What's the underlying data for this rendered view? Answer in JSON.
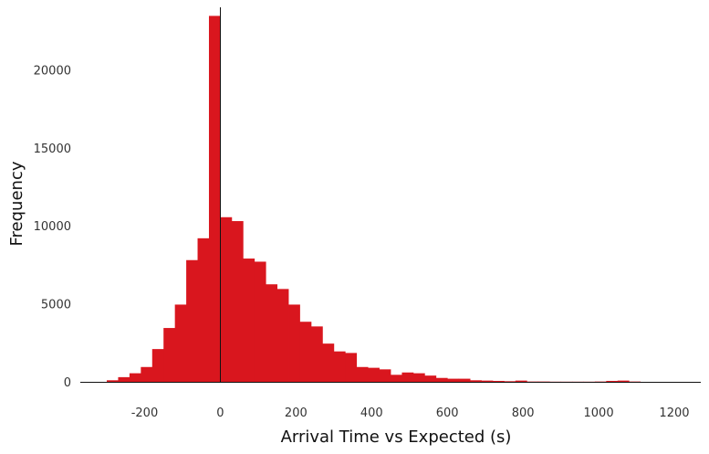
{
  "chart_data": {
    "type": "bar",
    "title": "",
    "xlabel": "Arrival Time vs Expected (s)",
    "ylabel": "Frequency",
    "bin_width": 30,
    "xlim": [
      -370,
      1270
    ],
    "ylim": [
      0,
      24000
    ],
    "x_ticks": [
      -200,
      0,
      200,
      400,
      600,
      800,
      1000,
      1200
    ],
    "x_tick_labels": [
      "-200",
      "0",
      "200",
      "400",
      "600",
      "800",
      "1000",
      "1200"
    ],
    "y_ticks": [
      0,
      5000,
      10000,
      15000,
      20000
    ],
    "y_tick_labels": [
      "0",
      "5000",
      "10000",
      "15000",
      "20000"
    ],
    "bar_color": "#d9161e",
    "grid": false,
    "bins": [
      {
        "x0": -300,
        "count": 100
      },
      {
        "x0": -270,
        "count": 300
      },
      {
        "x0": -240,
        "count": 550
      },
      {
        "x0": -210,
        "count": 950
      },
      {
        "x0": -180,
        "count": 2100
      },
      {
        "x0": -150,
        "count": 3450
      },
      {
        "x0": -120,
        "count": 4950
      },
      {
        "x0": -90,
        "count": 7800
      },
      {
        "x0": -60,
        "count": 9200
      },
      {
        "x0": -30,
        "count": 23450
      },
      {
        "x0": 0,
        "count": 10550
      },
      {
        "x0": 30,
        "count": 10300
      },
      {
        "x0": 60,
        "count": 7900
      },
      {
        "x0": 90,
        "count": 7700
      },
      {
        "x0": 120,
        "count": 6250
      },
      {
        "x0": 150,
        "count": 5950
      },
      {
        "x0": 180,
        "count": 4950
      },
      {
        "x0": 210,
        "count": 3850
      },
      {
        "x0": 240,
        "count": 3550
      },
      {
        "x0": 270,
        "count": 2450
      },
      {
        "x0": 300,
        "count": 1950
      },
      {
        "x0": 330,
        "count": 1850
      },
      {
        "x0": 360,
        "count": 950
      },
      {
        "x0": 390,
        "count": 900
      },
      {
        "x0": 420,
        "count": 800
      },
      {
        "x0": 450,
        "count": 450
      },
      {
        "x0": 480,
        "count": 600
      },
      {
        "x0": 510,
        "count": 550
      },
      {
        "x0": 540,
        "count": 400
      },
      {
        "x0": 570,
        "count": 250
      },
      {
        "x0": 600,
        "count": 200
      },
      {
        "x0": 630,
        "count": 200
      },
      {
        "x0": 660,
        "count": 100
      },
      {
        "x0": 690,
        "count": 80
      },
      {
        "x0": 720,
        "count": 60
      },
      {
        "x0": 750,
        "count": 40
      },
      {
        "x0": 780,
        "count": 80
      },
      {
        "x0": 810,
        "count": 20
      },
      {
        "x0": 840,
        "count": 20
      },
      {
        "x0": 870,
        "count": 10
      },
      {
        "x0": 900,
        "count": 10
      },
      {
        "x0": 930,
        "count": 10
      },
      {
        "x0": 960,
        "count": 10
      },
      {
        "x0": 990,
        "count": 20
      },
      {
        "x0": 1020,
        "count": 60
      },
      {
        "x0": 1050,
        "count": 80
      },
      {
        "x0": 1080,
        "count": 20
      }
    ]
  }
}
